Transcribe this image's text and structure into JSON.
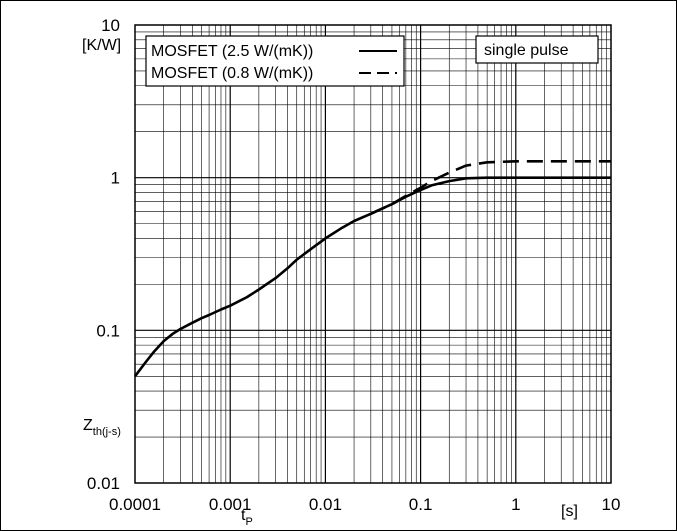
{
  "chart_data": {
    "type": "line",
    "title": "",
    "xscale": "log",
    "yscale": "log",
    "xlim": [
      0.0001,
      10
    ],
    "ylim": [
      0.01,
      10
    ],
    "grid": true,
    "x_ticks": [
      {
        "value": 0.0001,
        "label": "0.0001"
      },
      {
        "value": 0.001,
        "label": "0.001"
      },
      {
        "value": 0.01,
        "label": "0.01"
      },
      {
        "value": 0.1,
        "label": "0.1"
      },
      {
        "value": 1,
        "label": "1"
      },
      {
        "value": 10,
        "label": "10"
      }
    ],
    "y_ticks": [
      {
        "value": 0.01,
        "label": "0.01"
      },
      {
        "value": 0.1,
        "label": "0.1"
      },
      {
        "value": 1,
        "label": "1"
      },
      {
        "value": 10,
        "label": "10"
      }
    ],
    "xlabel": {
      "main": "t",
      "sub": "P",
      "unit": "[s]"
    },
    "ylabel": {
      "main": "Z",
      "sub": "th(j-s)",
      "unit": "[K/W]"
    },
    "annotation": "single pulse",
    "legend_position": "top-left",
    "series": [
      {
        "name": "MOSFET (2.5 W/(mK))",
        "style": "solid",
        "x": [
          0.0001,
          0.00013,
          0.00016,
          0.0002,
          0.00025,
          0.0003,
          0.0004,
          0.0005,
          0.0006,
          0.0008,
          0.001,
          0.0015,
          0.002,
          0.003,
          0.004,
          0.005,
          0.007,
          0.01,
          0.015,
          0.02,
          0.03,
          0.04,
          0.05,
          0.07,
          0.1,
          0.13,
          0.2,
          0.3,
          0.5,
          1,
          2,
          5,
          10
        ],
        "y": [
          0.05,
          0.062,
          0.073,
          0.085,
          0.095,
          0.102,
          0.112,
          0.12,
          0.126,
          0.137,
          0.145,
          0.165,
          0.185,
          0.22,
          0.255,
          0.29,
          0.34,
          0.4,
          0.47,
          0.52,
          0.58,
          0.63,
          0.67,
          0.75,
          0.83,
          0.89,
          0.95,
          0.99,
          1.0,
          1.0,
          1.0,
          1.0,
          1.0
        ]
      },
      {
        "name": "MOSFET (0.8 W/(mK))",
        "style": "dashed",
        "x": [
          0.03,
          0.05,
          0.07,
          0.1,
          0.13,
          0.2,
          0.3,
          0.5,
          1,
          2,
          5,
          10
        ],
        "y": [
          0.58,
          0.67,
          0.76,
          0.86,
          0.95,
          1.08,
          1.2,
          1.26,
          1.28,
          1.28,
          1.28,
          1.28
        ]
      }
    ]
  }
}
